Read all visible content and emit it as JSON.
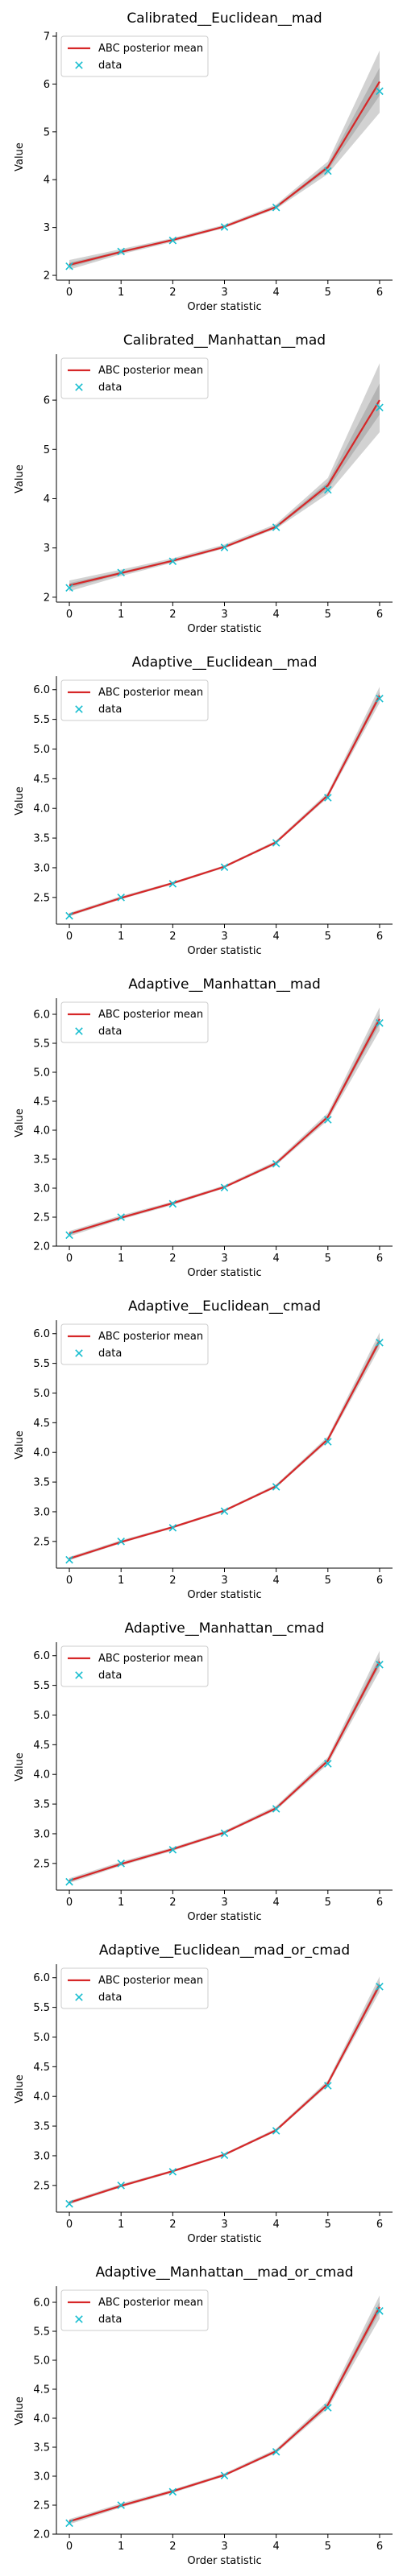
{
  "legend": {
    "mean_label": "ABC posterior mean",
    "data_label": "data"
  },
  "colors": {
    "mean": "#d62728",
    "data": "#17becf",
    "band": "#7f7f7f",
    "axis": "#000000"
  },
  "chart_data": [
    {
      "type": "line",
      "title": "Calibrated__Euclidean__mad",
      "xlabel": "Order statistic",
      "ylabel": "Value",
      "x": [
        0,
        1,
        2,
        3,
        4,
        5,
        6
      ],
      "xticks": [
        "0",
        "1",
        "2",
        "3",
        "4",
        "5",
        "6"
      ],
      "ylim": [
        1.9,
        7.05
      ],
      "yticks": [
        2,
        3,
        4,
        5,
        6,
        7
      ],
      "ytick_labels": [
        "2",
        "3",
        "4",
        "5",
        "6",
        "7"
      ],
      "series": [
        {
          "name": "ABC posterior mean",
          "values": [
            2.22,
            2.49,
            2.74,
            3.02,
            3.43,
            4.26,
            6.05
          ]
        },
        {
          "name": "data",
          "values": [
            2.19,
            2.5,
            2.73,
            3.01,
            3.42,
            4.18,
            5.85
          ]
        }
      ],
      "band": {
        "lower": [
          2.12,
          2.44,
          2.7,
          2.99,
          3.39,
          4.12,
          5.4
        ],
        "upper": [
          2.32,
          2.55,
          2.78,
          3.06,
          3.48,
          4.38,
          6.7
        ]
      },
      "legend_position": "upper-left",
      "grid": false
    },
    {
      "type": "line",
      "title": "Calibrated__Manhattan__mad",
      "xlabel": "Order statistic",
      "ylabel": "Value",
      "x": [
        0,
        1,
        2,
        3,
        4,
        5,
        6
      ],
      "xticks": [
        "0",
        "1",
        "2",
        "3",
        "4",
        "5",
        "6"
      ],
      "ylim": [
        1.9,
        6.9
      ],
      "yticks": [
        2,
        3,
        4,
        5,
        6
      ],
      "ytick_labels": [
        "2",
        "3",
        "4",
        "5",
        "6"
      ],
      "series": [
        {
          "name": "ABC posterior mean",
          "values": [
            2.24,
            2.49,
            2.74,
            3.02,
            3.43,
            4.27,
            6.0
          ]
        },
        {
          "name": "data",
          "values": [
            2.19,
            2.5,
            2.73,
            3.01,
            3.42,
            4.18,
            5.85
          ]
        }
      ],
      "band": {
        "lower": [
          2.12,
          2.43,
          2.7,
          2.99,
          3.39,
          4.1,
          5.35
        ],
        "upper": [
          2.34,
          2.56,
          2.79,
          3.07,
          3.49,
          4.42,
          6.75
        ]
      },
      "legend_position": "upper-left",
      "grid": false
    },
    {
      "type": "line",
      "title": "Adaptive__Euclidean__mad",
      "xlabel": "Order statistic",
      "ylabel": "Value",
      "x": [
        0,
        1,
        2,
        3,
        4,
        5,
        6
      ],
      "xticks": [
        "0",
        "1",
        "2",
        "3",
        "4",
        "5",
        "6"
      ],
      "ylim": [
        2.05,
        6.2
      ],
      "yticks": [
        2.5,
        3.0,
        3.5,
        4.0,
        4.5,
        5.0,
        5.5,
        6.0
      ],
      "ytick_labels": [
        "2.5",
        "3.0",
        "3.5",
        "4.0",
        "4.5",
        "5.0",
        "5.5",
        "6.0"
      ],
      "series": [
        {
          "name": "ABC posterior mean",
          "values": [
            2.21,
            2.49,
            2.74,
            3.02,
            3.43,
            4.22,
            5.9
          ]
        },
        {
          "name": "data",
          "values": [
            2.19,
            2.5,
            2.73,
            3.01,
            3.42,
            4.18,
            5.85
          ]
        }
      ],
      "band": {
        "lower": [
          2.18,
          2.47,
          2.72,
          3.0,
          3.41,
          4.18,
          5.78
        ],
        "upper": [
          2.24,
          2.52,
          2.76,
          3.04,
          3.46,
          4.27,
          6.05
        ]
      },
      "legend_position": "upper-left",
      "grid": false
    },
    {
      "type": "line",
      "title": "Adaptive__Manhattan__mad",
      "xlabel": "Order statistic",
      "ylabel": "Value",
      "x": [
        0,
        1,
        2,
        3,
        4,
        5,
        6
      ],
      "xticks": [
        "0",
        "1",
        "2",
        "3",
        "4",
        "5",
        "6"
      ],
      "ylim": [
        2.0,
        6.25
      ],
      "yticks": [
        2.0,
        2.5,
        3.0,
        3.5,
        4.0,
        4.5,
        5.0,
        5.5,
        6.0
      ],
      "ytick_labels": [
        "2.0",
        "2.5",
        "3.0",
        "3.5",
        "4.0",
        "4.5",
        "5.0",
        "5.5",
        "6.0"
      ],
      "series": [
        {
          "name": "ABC posterior mean",
          "values": [
            2.22,
            2.49,
            2.74,
            3.02,
            3.43,
            4.23,
            5.92
          ]
        },
        {
          "name": "data",
          "values": [
            2.19,
            2.5,
            2.73,
            3.01,
            3.42,
            4.18,
            5.85
          ]
        }
      ],
      "band": {
        "lower": [
          2.17,
          2.46,
          2.71,
          3.0,
          3.4,
          4.17,
          5.72
        ],
        "upper": [
          2.26,
          2.53,
          2.77,
          3.05,
          3.47,
          4.3,
          6.12
        ]
      },
      "legend_position": "upper-left",
      "grid": false
    },
    {
      "type": "line",
      "title": "Adaptive__Euclidean__cmad",
      "xlabel": "Order statistic",
      "ylabel": "Value",
      "x": [
        0,
        1,
        2,
        3,
        4,
        5,
        6
      ],
      "xticks": [
        "0",
        "1",
        "2",
        "3",
        "4",
        "5",
        "6"
      ],
      "ylim": [
        2.05,
        6.2
      ],
      "yticks": [
        2.5,
        3.0,
        3.5,
        4.0,
        4.5,
        5.0,
        5.5,
        6.0
      ],
      "ytick_labels": [
        "2.5",
        "3.0",
        "3.5",
        "4.0",
        "4.5",
        "5.0",
        "5.5",
        "6.0"
      ],
      "series": [
        {
          "name": "ABC posterior mean",
          "values": [
            2.21,
            2.49,
            2.74,
            3.02,
            3.43,
            4.22,
            5.88
          ]
        },
        {
          "name": "data",
          "values": [
            2.19,
            2.5,
            2.73,
            3.01,
            3.42,
            4.18,
            5.85
          ]
        }
      ],
      "band": {
        "lower": [
          2.18,
          2.47,
          2.72,
          3.0,
          3.41,
          4.18,
          5.76
        ],
        "upper": [
          2.24,
          2.52,
          2.76,
          3.04,
          3.46,
          4.27,
          6.02
        ]
      },
      "legend_position": "upper-left",
      "grid": false
    },
    {
      "type": "line",
      "title": "Adaptive__Manhattan__cmad",
      "xlabel": "Order statistic",
      "ylabel": "Value",
      "x": [
        0,
        1,
        2,
        3,
        4,
        5,
        6
      ],
      "xticks": [
        "0",
        "1",
        "2",
        "3",
        "4",
        "5",
        "6"
      ],
      "ylim": [
        2.05,
        6.2
      ],
      "yticks": [
        2.5,
        3.0,
        3.5,
        4.0,
        4.5,
        5.0,
        5.5,
        6.0
      ],
      "ytick_labels": [
        "2.5",
        "3.0",
        "3.5",
        "4.0",
        "4.5",
        "5.0",
        "5.5",
        "6.0"
      ],
      "series": [
        {
          "name": "ABC posterior mean",
          "values": [
            2.21,
            2.49,
            2.74,
            3.02,
            3.43,
            4.23,
            5.9
          ]
        },
        {
          "name": "data",
          "values": [
            2.19,
            2.5,
            2.73,
            3.01,
            3.42,
            4.18,
            5.85
          ]
        }
      ],
      "band": {
        "lower": [
          2.17,
          2.46,
          2.71,
          3.0,
          3.4,
          4.17,
          5.74
        ],
        "upper": [
          2.25,
          2.53,
          2.77,
          3.05,
          3.47,
          4.29,
          6.08
        ]
      },
      "legend_position": "upper-left",
      "grid": false
    },
    {
      "type": "line",
      "title": "Adaptive__Euclidean__mad_or_cmad",
      "xlabel": "Order statistic",
      "ylabel": "Value",
      "x": [
        0,
        1,
        2,
        3,
        4,
        5,
        6
      ],
      "xticks": [
        "0",
        "1",
        "2",
        "3",
        "4",
        "5",
        "6"
      ],
      "ylim": [
        2.05,
        6.2
      ],
      "yticks": [
        2.5,
        3.0,
        3.5,
        4.0,
        4.5,
        5.0,
        5.5,
        6.0
      ],
      "ytick_labels": [
        "2.5",
        "3.0",
        "3.5",
        "4.0",
        "4.5",
        "5.0",
        "5.5",
        "6.0"
      ],
      "series": [
        {
          "name": "ABC posterior mean",
          "values": [
            2.21,
            2.49,
            2.74,
            3.02,
            3.43,
            4.22,
            5.88
          ]
        },
        {
          "name": "data",
          "values": [
            2.19,
            2.5,
            2.73,
            3.01,
            3.42,
            4.18,
            5.85
          ]
        }
      ],
      "band": {
        "lower": [
          2.18,
          2.47,
          2.72,
          3.0,
          3.41,
          4.18,
          5.76
        ],
        "upper": [
          2.24,
          2.52,
          2.76,
          3.04,
          3.46,
          4.27,
          6.02
        ]
      },
      "legend_position": "upper-left",
      "grid": false
    },
    {
      "type": "line",
      "title": "Adaptive__Manhattan__mad_or_cmad",
      "xlabel": "Order statistic",
      "ylabel": "Value",
      "x": [
        0,
        1,
        2,
        3,
        4,
        5,
        6
      ],
      "xticks": [
        "0",
        "1",
        "2",
        "3",
        "4",
        "5",
        "6"
      ],
      "ylim": [
        2.0,
        6.25
      ],
      "yticks": [
        2.0,
        2.5,
        3.0,
        3.5,
        4.0,
        4.5,
        5.0,
        5.5,
        6.0
      ],
      "ytick_labels": [
        "2.0",
        "2.5",
        "3.0",
        "3.5",
        "4.0",
        "4.5",
        "5.0",
        "5.5",
        "6.0"
      ],
      "series": [
        {
          "name": "ABC posterior mean",
          "values": [
            2.22,
            2.49,
            2.74,
            3.02,
            3.43,
            4.23,
            5.92
          ]
        },
        {
          "name": "data",
          "values": [
            2.19,
            2.5,
            2.73,
            3.01,
            3.42,
            4.18,
            5.85
          ]
        }
      ],
      "band": {
        "lower": [
          2.17,
          2.46,
          2.71,
          3.0,
          3.4,
          4.17,
          5.72
        ],
        "upper": [
          2.26,
          2.53,
          2.77,
          3.05,
          3.47,
          4.3,
          6.12
        ]
      },
      "legend_position": "upper-left",
      "grid": false
    }
  ]
}
